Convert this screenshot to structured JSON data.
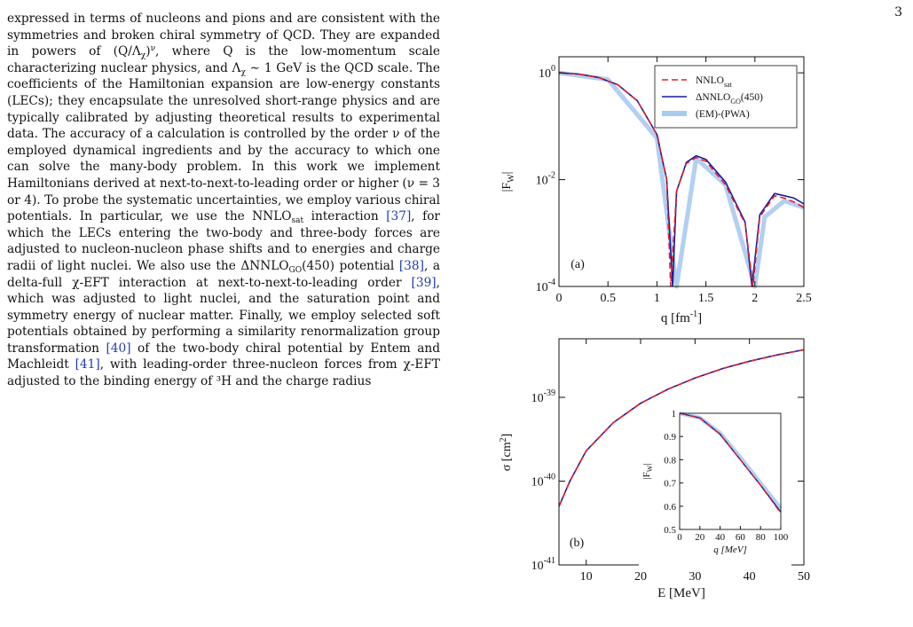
{
  "page_number": "3",
  "body": {
    "paragraph_parts": {
      "p1": "expressed in terms of nucleons and pions and are consistent with the symmetries and broken chiral symmetry of QCD. They are expanded in powers of (Q/Λ",
      "p2": ")",
      "p3": ", where Q is the low-momentum scale characterizing nuclear physics, and Λ",
      "p4": " ∼ 1 GeV is the QCD scale. The coefficients of the Hamiltonian expansion are low-energy constants (LECs); they encapsulate the unresolved short-range physics and are typically calibrated by adjusting theoretical results to experimental data. The accuracy of a calculation is controlled by the order ν of the employed dynamical ingredients and by the accuracy to which one can solve the many-body problem. In this work we implement Hamiltonians derived at next-to-next-to-leading order or higher (ν = 3 or 4). To probe the systematic uncertainties, we employ various chiral potentials. In particular, we use the NNLO",
      "p5": " interaction ",
      "cite37": "[37]",
      "p6": ", for which the LECs entering the two-body and three-body forces are adjusted to nucleon-nucleon phase shifts and to energies and charge radii of light nuclei. We also use the ΔNNLO",
      "p7": "(450) potential ",
      "cite38": "[38]",
      "p8": ", a delta-full χ-EFT interaction at next-to-next-to-leading order ",
      "cite39": "[39]",
      "p9": ", which was adjusted to light nuclei, and the saturation point and symmetry energy of nuclear matter. Finally, we employ selected soft potentials obtained by performing a similarity renormalization group transformation ",
      "cite40": "[40]",
      "p10": " of the two-body chiral potential by Entem and Machleidt ",
      "cite41": "[41]",
      "p11": ", with leading-order three-nucleon forces from χ-EFT adjusted to the binding energy of ³H and the charge radius",
      "sub_chi": "χ",
      "sup_nu": "ν",
      "sub_sat": "sat",
      "sub_go": "GO"
    }
  },
  "chart_data": [
    {
      "type": "line",
      "panel_label": "(a)",
      "xlabel": "q  [fm-1]",
      "ylabel": "|Fw|",
      "xlim": [
        0,
        2.5
      ],
      "ylim": [
        0.0001,
        2
      ],
      "y_scale": "log",
      "x_ticks": [
        "0",
        "0.5",
        "1",
        "1.5",
        "2",
        "2.5"
      ],
      "y_ticks": [
        "10^0",
        "10^-2",
        "10^-4"
      ],
      "legend_position": "top-right",
      "series": [
        {
          "name": "NNLOsat",
          "style": "dashed",
          "color": "#e0202a",
          "x": [
            0,
            0.2,
            0.4,
            0.6,
            0.8,
            1.0,
            1.1,
            1.14,
            1.2,
            1.3,
            1.4,
            1.5,
            1.7,
            1.9,
            1.98,
            2.05,
            2.2,
            2.3,
            2.4,
            2.5
          ],
          "y": [
            1.0,
            0.95,
            0.82,
            0.6,
            0.3,
            0.07,
            0.01,
            0.0001,
            0.006,
            0.02,
            0.026,
            0.022,
            0.008,
            0.0015,
            0.0001,
            0.002,
            0.005,
            0.0045,
            0.0038,
            0.003
          ]
        },
        {
          "name": "ΔNNLOGO(450)",
          "style": "solid",
          "color": "#1a1a9e",
          "x": [
            0,
            0.2,
            0.4,
            0.6,
            0.8,
            1.0,
            1.1,
            1.16,
            1.2,
            1.3,
            1.4,
            1.5,
            1.7,
            1.9,
            1.97,
            2.05,
            2.2,
            2.3,
            2.4,
            2.5
          ],
          "y": [
            1.0,
            0.95,
            0.82,
            0.6,
            0.3,
            0.07,
            0.01,
            0.0001,
            0.006,
            0.021,
            0.028,
            0.024,
            0.009,
            0.0016,
            0.0001,
            0.0022,
            0.0055,
            0.005,
            0.0045,
            0.0035
          ]
        },
        {
          "name": "(EM)-(PWA)",
          "style": "band",
          "color": "#aacbf0",
          "x": [
            0,
            0.5,
            1.0,
            1.2,
            1.4,
            1.7,
            2.0,
            2.1,
            2.3,
            2.5
          ],
          "y": [
            1.0,
            0.75,
            0.06,
            0.0001,
            0.025,
            0.008,
            0.0001,
            0.002,
            0.004,
            0.003
          ]
        }
      ]
    },
    {
      "type": "line",
      "panel_label": "(b)",
      "xlabel": "E [MeV]",
      "ylabel": "σ [cm2]",
      "xlim": [
        5,
        50
      ],
      "ylim": [
        1e-41,
        5e-39
      ],
      "y_scale": "log",
      "x_ticks": [
        "10",
        "20",
        "30",
        "40",
        "50"
      ],
      "y_ticks": [
        "10^-39",
        "10^-40",
        "10^-41"
      ],
      "series": [
        {
          "name": "NNLOsat",
          "style": "dashed",
          "color": "#e0202a",
          "x": [
            5,
            7,
            10,
            15,
            20,
            25,
            30,
            35,
            40,
            45,
            50
          ],
          "y": [
            5e-41,
            1e-40,
            2.3e-40,
            5e-40,
            8.5e-40,
            1.25e-39,
            1.7e-39,
            2.2e-39,
            2.7e-39,
            3.2e-39,
            3.7e-39
          ]
        },
        {
          "name": "ΔNNLOGO(450)",
          "style": "solid",
          "color": "#1a1a9e",
          "x": [
            5,
            7,
            10,
            15,
            20,
            25,
            30,
            35,
            40,
            45,
            50
          ],
          "y": [
            5e-41,
            1e-40,
            2.3e-40,
            5e-40,
            8.5e-40,
            1.25e-39,
            1.7e-39,
            2.2e-39,
            2.7e-39,
            3.2e-39,
            3.7e-39
          ]
        }
      ],
      "inset": {
        "xlabel": "q  [MeV]",
        "ylabel": "|Fw|",
        "xlim": [
          0,
          100
        ],
        "ylim": [
          0.5,
          1
        ],
        "x_ticks": [
          "0",
          "20",
          "40",
          "60",
          "80",
          "100"
        ],
        "y_ticks": [
          "0.5",
          "0.6",
          "0.7",
          "0.8",
          "0.9",
          "1"
        ],
        "series": [
          {
            "name": "NNLOsat",
            "style": "dashed",
            "color": "#e0202a",
            "x": [
              0,
              20,
              40,
              60,
              80,
              100
            ],
            "y": [
              1.0,
              0.98,
              0.91,
              0.8,
              0.69,
              0.57
            ]
          },
          {
            "name": "ΔNNLOGO(450)",
            "style": "solid",
            "color": "#1a1a9e",
            "x": [
              0,
              20,
              40,
              60,
              80,
              100
            ],
            "y": [
              1.0,
              0.98,
              0.91,
              0.8,
              0.69,
              0.575
            ]
          },
          {
            "name": "(EM)-(PWA)",
            "style": "band",
            "color": "#aacbf0",
            "x": [
              0,
              20,
              40,
              60,
              80,
              100
            ],
            "y": [
              1.0,
              0.98,
              0.915,
              0.81,
              0.7,
              0.59
            ]
          }
        ]
      }
    }
  ]
}
